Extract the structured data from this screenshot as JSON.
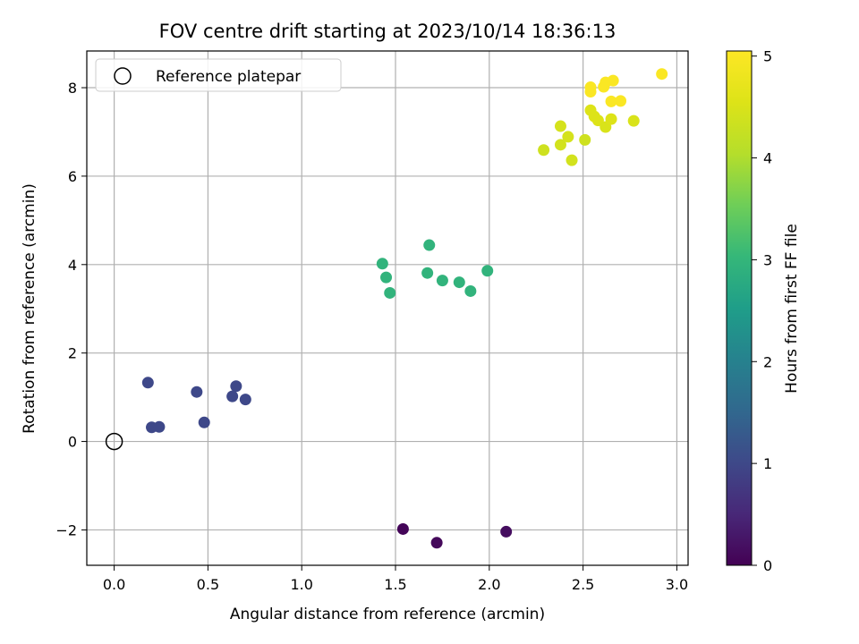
{
  "chart_data": {
    "type": "scatter",
    "title": "FOV centre drift starting at 2023/10/14 18:36:13",
    "xlabel": "Angular distance from reference (arcmin)",
    "ylabel": "Rotation from reference (arcmin)",
    "xlim": [
      -0.146,
      3.06
    ],
    "ylim": [
      -2.8,
      8.83
    ],
    "xticks": [
      0.0,
      0.5,
      1.0,
      1.5,
      2.0,
      2.5,
      3.0
    ],
    "xtick_labels": [
      "0.0",
      "0.5",
      "1.0",
      "1.5",
      "2.0",
      "2.5",
      "3.0"
    ],
    "yticks": [
      -2,
      0,
      2,
      4,
      6,
      8
    ],
    "ytick_labels": [
      "−2",
      "0",
      "2",
      "4",
      "6",
      "8"
    ],
    "grid": true,
    "legend": {
      "position": "top-left",
      "entries": [
        {
          "label": "Reference platepar",
          "marker": "open-circle"
        }
      ]
    },
    "reference_point": {
      "x": 0.0,
      "y": 0.0
    },
    "colorbar": {
      "label": "Hours from first FF file",
      "colormap": "viridis",
      "range": [
        0,
        5.05
      ],
      "ticks": [
        0,
        1,
        2,
        3,
        4,
        5
      ],
      "tick_labels": [
        "0",
        "1",
        "2",
        "3",
        "4",
        "5"
      ]
    },
    "points": [
      {
        "x": 1.54,
        "y": -1.98,
        "hours": 0.05
      },
      {
        "x": 1.72,
        "y": -2.29,
        "hours": 0.1
      },
      {
        "x": 2.09,
        "y": -2.04,
        "hours": 0.15
      },
      {
        "x": 0.18,
        "y": 1.33,
        "hours": 1.0
      },
      {
        "x": 0.2,
        "y": 0.32,
        "hours": 1.0
      },
      {
        "x": 0.24,
        "y": 0.33,
        "hours": 1.0
      },
      {
        "x": 0.44,
        "y": 1.12,
        "hours": 1.0
      },
      {
        "x": 0.48,
        "y": 0.43,
        "hours": 1.0
      },
      {
        "x": 0.63,
        "y": 1.02,
        "hours": 1.0
      },
      {
        "x": 0.65,
        "y": 1.25,
        "hours": 1.0
      },
      {
        "x": 0.7,
        "y": 0.95,
        "hours": 1.0
      },
      {
        "x": 1.43,
        "y": 4.02,
        "hours": 2.95
      },
      {
        "x": 1.45,
        "y": 3.71,
        "hours": 2.95
      },
      {
        "x": 1.47,
        "y": 3.36,
        "hours": 2.95
      },
      {
        "x": 1.67,
        "y": 3.81,
        "hours": 2.95
      },
      {
        "x": 1.68,
        "y": 4.44,
        "hours": 2.95
      },
      {
        "x": 1.75,
        "y": 3.64,
        "hours": 2.95
      },
      {
        "x": 1.84,
        "y": 3.6,
        "hours": 2.95
      },
      {
        "x": 1.9,
        "y": 3.4,
        "hours": 2.95
      },
      {
        "x": 1.99,
        "y": 3.86,
        "hours": 2.95
      },
      {
        "x": 2.29,
        "y": 6.59,
        "hours": 4.35
      },
      {
        "x": 2.38,
        "y": 7.13,
        "hours": 4.45
      },
      {
        "x": 2.38,
        "y": 6.71,
        "hours": 4.4
      },
      {
        "x": 2.42,
        "y": 6.89,
        "hours": 4.45
      },
      {
        "x": 2.44,
        "y": 6.36,
        "hours": 4.4
      },
      {
        "x": 2.51,
        "y": 6.82,
        "hours": 4.35
      },
      {
        "x": 2.54,
        "y": 7.49,
        "hours": 4.55
      },
      {
        "x": 2.56,
        "y": 7.35,
        "hours": 4.55
      },
      {
        "x": 2.58,
        "y": 7.26,
        "hours": 4.55
      },
      {
        "x": 2.62,
        "y": 7.11,
        "hours": 4.5
      },
      {
        "x": 2.65,
        "y": 7.29,
        "hours": 4.55
      },
      {
        "x": 2.54,
        "y": 7.91,
        "hours": 5.0
      },
      {
        "x": 2.54,
        "y": 8.01,
        "hours": 5.0
      },
      {
        "x": 2.61,
        "y": 8.02,
        "hours": 5.0
      },
      {
        "x": 2.62,
        "y": 8.12,
        "hours": 5.0
      },
      {
        "x": 2.66,
        "y": 8.16,
        "hours": 5.0
      },
      {
        "x": 2.65,
        "y": 7.69,
        "hours": 5.0
      },
      {
        "x": 2.7,
        "y": 7.7,
        "hours": 5.0
      },
      {
        "x": 2.77,
        "y": 7.25,
        "hours": 4.5
      },
      {
        "x": 2.92,
        "y": 8.31,
        "hours": 5.0
      }
    ]
  }
}
